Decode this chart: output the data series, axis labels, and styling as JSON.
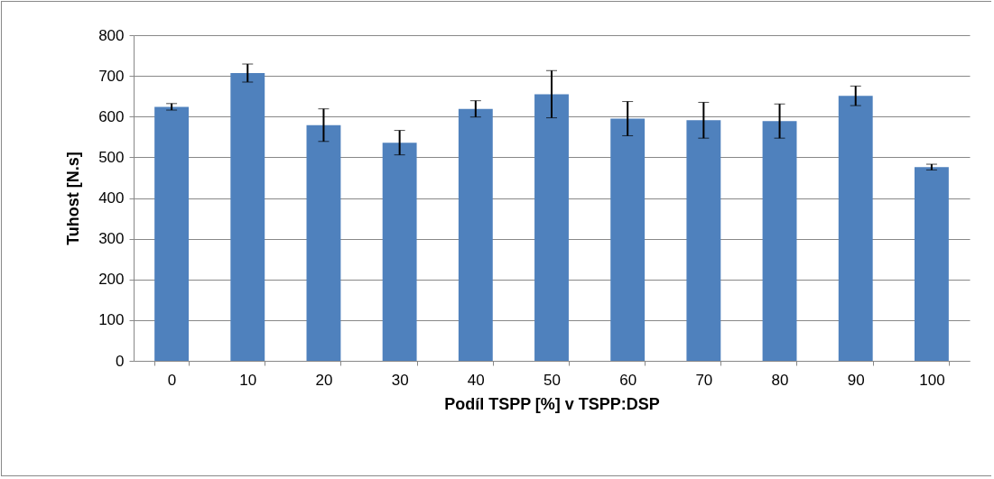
{
  "chart_data": {
    "type": "bar",
    "xlabel": "Podíl TSPP [%] v TSPP:DSP",
    "ylabel": "Tuhost  [N.s]",
    "categories": [
      "0",
      "10",
      "20",
      "30",
      "40",
      "50",
      "60",
      "70",
      "80",
      "90",
      "100"
    ],
    "values": [
      624,
      707,
      579,
      536,
      619,
      655,
      595,
      591,
      589,
      651,
      476
    ],
    "errors": [
      8,
      22,
      40,
      30,
      20,
      58,
      42,
      44,
      42,
      24,
      7
    ],
    "color": "#4f81bd",
    "ylim": [
      0,
      800
    ],
    "yticks": [
      0,
      100,
      200,
      300,
      400,
      500,
      600,
      700,
      800
    ],
    "grid": "y"
  }
}
